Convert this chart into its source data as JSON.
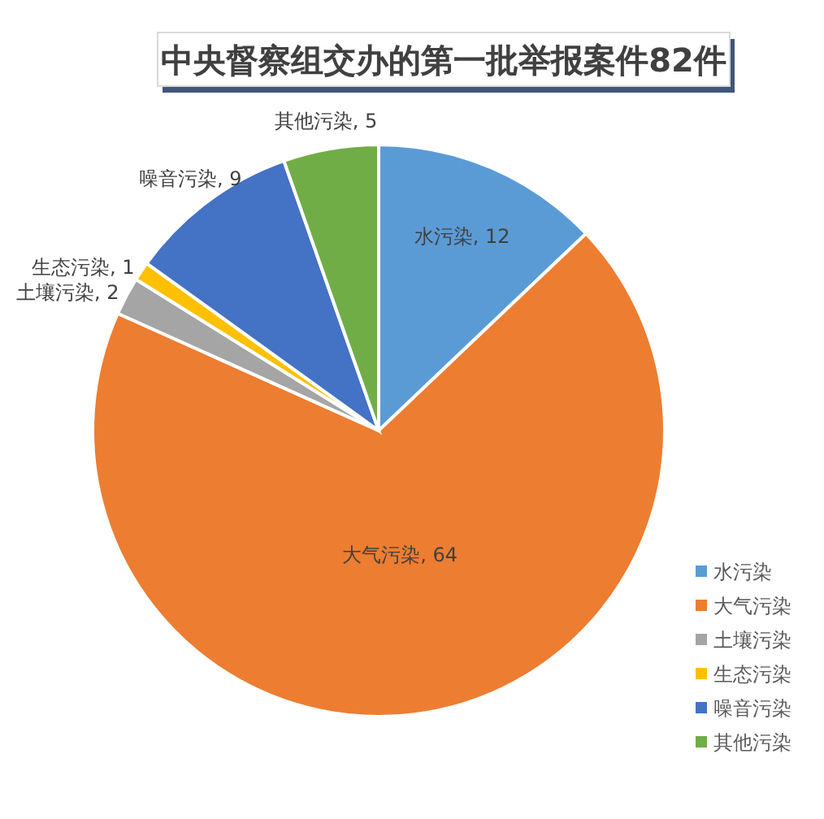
{
  "chart_data": {
    "type": "pie",
    "title": "中央督察组交办的第一批举报案件82件",
    "categories": [
      "水污染",
      "大气污染",
      "土壤污染",
      "生态污染",
      "噪音污染",
      "其他污染"
    ],
    "values": [
      12,
      64,
      2,
      1,
      9,
      5
    ],
    "value_labels": [
      "水污染, 12",
      "大气污染, 64",
      "土壤污染, 2",
      "生态污染, 1",
      "噪音污染, 9",
      "其他污染, 5"
    ],
    "colors": [
      "#5b9bd5",
      "#ed7d31",
      "#a5a5a5",
      "#ffc000",
      "#4472c4",
      "#70ad47"
    ],
    "legend": "bottom right"
  }
}
